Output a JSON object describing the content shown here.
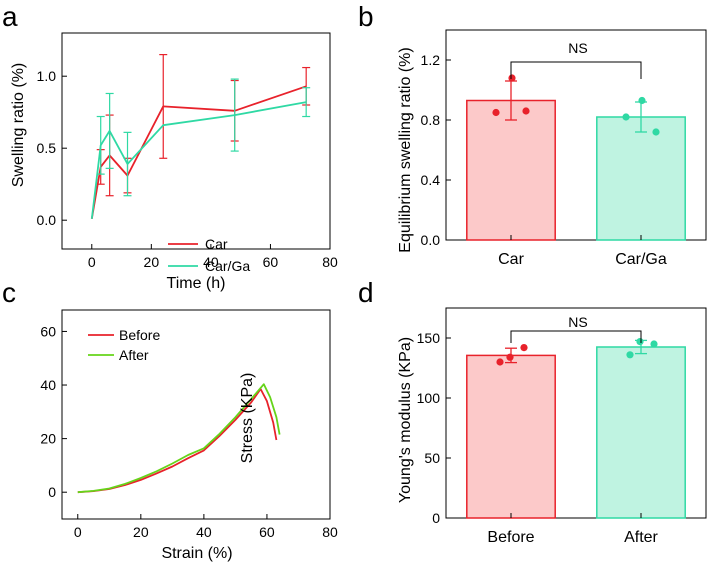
{
  "colors": {
    "red": "#e8222b",
    "teal": "#2fd9a4",
    "green": "#66d41a",
    "red_fill": "#fcc9c9",
    "teal_fill": "#bff3e1",
    "red_dot": "#e8222b",
    "teal_dot": "#2fd9a4"
  },
  "chart_data": [
    {
      "id": "a",
      "panel_label": "a",
      "type": "line",
      "xlabel": "Time (h)",
      "ylabel": "Swelling ratio (%)",
      "xlim": [
        -10,
        80
      ],
      "ylim": [
        -0.2,
        1.3
      ],
      "xticks": [
        0,
        20,
        40,
        60,
        80
      ],
      "xtick_labels": [
        "0",
        "20",
        "40",
        "60",
        "80"
      ],
      "yticks": [
        0.0,
        0.5,
        1.0
      ],
      "ytick_labels": [
        "0.0",
        "0.5",
        "1.0"
      ],
      "legend_position": "bottom-right",
      "series": [
        {
          "name": "Car",
          "color": "#e8222b",
          "x": [
            0,
            3,
            6,
            12,
            24,
            48,
            72
          ],
          "y": [
            0.01,
            0.37,
            0.45,
            0.31,
            0.79,
            0.76,
            0.93
          ],
          "err": [
            0,
            0.12,
            0.28,
            0.12,
            0.36,
            0.21,
            0.13
          ]
        },
        {
          "name": "Car/Ga",
          "color": "#2fd9a4",
          "x": [
            0,
            3,
            6,
            12,
            24,
            48,
            72
          ],
          "y": [
            0.01,
            0.52,
            0.62,
            0.39,
            0.66,
            0.73,
            0.82
          ],
          "err": [
            0,
            0.2,
            0.26,
            0.22,
            0,
            0.25,
            0.1
          ]
        }
      ]
    },
    {
      "id": "b",
      "panel_label": "b",
      "type": "bar",
      "xlabel": "",
      "ylabel": "Equilibrium swelling ratio (%)",
      "categories": [
        "Car",
        "Car/Ga"
      ],
      "values": [
        0.93,
        0.82
      ],
      "err": [
        0.13,
        0.1
      ],
      "points": [
        [
          0.85,
          1.08,
          0.86
        ],
        [
          0.82,
          0.93,
          0.72
        ]
      ],
      "ylim": [
        0,
        1.4
      ],
      "yticks": [
        0.0,
        0.4,
        0.8,
        1.2
      ],
      "ytick_labels": [
        "0.0",
        "0.4",
        "0.8",
        "1.2"
      ],
      "significance": "NS"
    },
    {
      "id": "c",
      "panel_label": "c",
      "type": "line",
      "xlabel": "Strain (%)",
      "ylabel": "Stress (KPa)",
      "xlim": [
        -5,
        80
      ],
      "ylim": [
        -10,
        68
      ],
      "xticks": [
        0,
        20,
        40,
        60,
        80
      ],
      "xtick_labels": [
        "0",
        "20",
        "40",
        "60",
        "80"
      ],
      "yticks": [
        0,
        20,
        40,
        60
      ],
      "ytick_labels": [
        "0",
        "20",
        "40",
        "60"
      ],
      "legend_position": "top-left",
      "series": [
        {
          "name": "Before",
          "color": "#e8222b",
          "x": [
            0,
            5,
            10,
            15,
            20,
            25,
            30,
            35,
            40,
            45,
            50,
            55,
            58,
            60,
            62,
            63
          ],
          "y": [
            0,
            0.4,
            1.2,
            2.7,
            4.6,
            7.0,
            9.6,
            12.7,
            15.6,
            21.0,
            27.0,
            33.5,
            38.5,
            34.0,
            26.0,
            19.5
          ]
        },
        {
          "name": "After",
          "color": "#66d41a",
          "x": [
            0,
            5,
            10,
            15,
            20,
            25,
            30,
            35,
            40,
            45,
            50,
            55,
            59,
            61,
            63,
            64
          ],
          "y": [
            0,
            0.5,
            1.4,
            3.1,
            5.3,
            7.8,
            10.7,
            13.9,
            16.4,
            21.8,
            28.0,
            34.8,
            40.3,
            35.5,
            28.0,
            21.5
          ]
        }
      ]
    },
    {
      "id": "d",
      "panel_label": "d",
      "type": "bar",
      "xlabel": "",
      "ylabel": "Young's modulus (KPa)",
      "categories": [
        "Before",
        "After"
      ],
      "values": [
        135.5,
        142.5
      ],
      "err": [
        6,
        5.5
      ],
      "points": [
        [
          130,
          134,
          142
        ],
        [
          136,
          147,
          145
        ]
      ],
      "ylim": [
        0,
        175
      ],
      "yticks": [
        0,
        50,
        100,
        150
      ],
      "ytick_labels": [
        "0",
        "50",
        "100",
        "150"
      ],
      "significance": "NS"
    }
  ]
}
